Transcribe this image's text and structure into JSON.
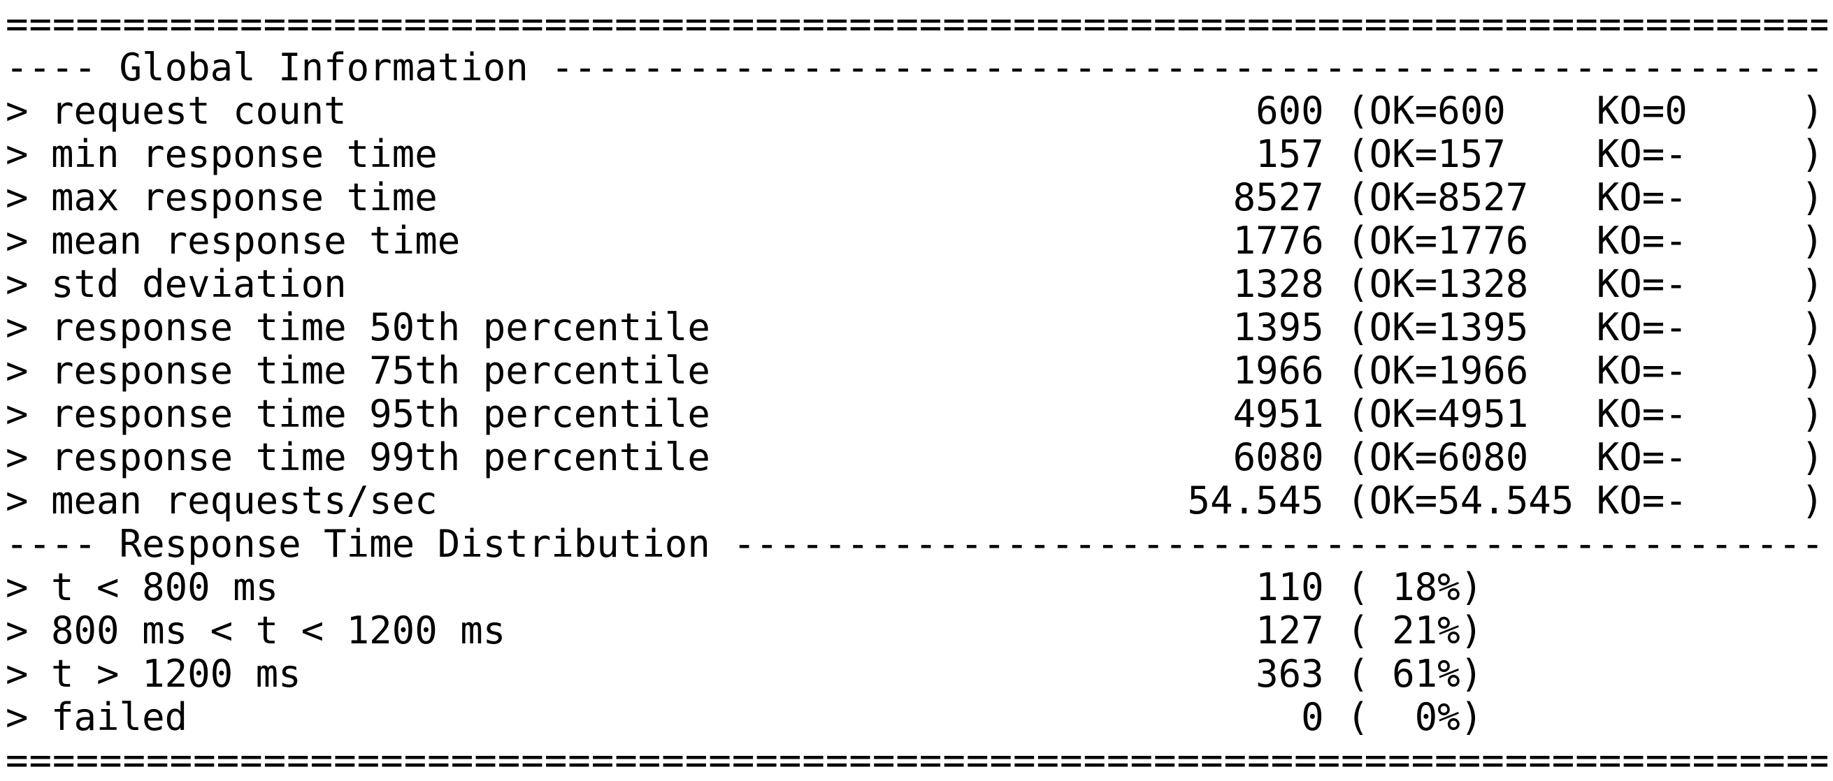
{
  "report": {
    "separator_top": "================================================================================",
    "section1_header": "---- Global Information --------------------------------------------------------",
    "global_stats": [
      "> request count                                        600 (OK=600    KO=0     )",
      "> min response time                                    157 (OK=157    KO=-     )",
      "> max response time                                   8527 (OK=8527   KO=-     )",
      "> mean response time                                  1776 (OK=1776   KO=-     )",
      "> std deviation                                       1328 (OK=1328   KO=-     )",
      "> response time 50th percentile                       1395 (OK=1395   KO=-     )",
      "> response time 75th percentile                       1966 (OK=1966   KO=-     )",
      "> response time 95th percentile                       4951 (OK=4951   KO=-     )",
      "> response time 99th percentile                       6080 (OK=6080   KO=-     )",
      "> mean requests/sec                                 54.545 (OK=54.545 KO=-     )"
    ],
    "section2_header": "---- Response Time Distribution ------------------------------------------------",
    "distribution": [
      "> t < 800 ms                                           110 ( 18%)",
      "> 800 ms < t < 1200 ms                                 127 ( 21%)",
      "> t > 1200 ms                                          363 ( 61%)",
      "> failed                                                 0 (  0%)"
    ],
    "separator_bottom": "================================================================================"
  }
}
